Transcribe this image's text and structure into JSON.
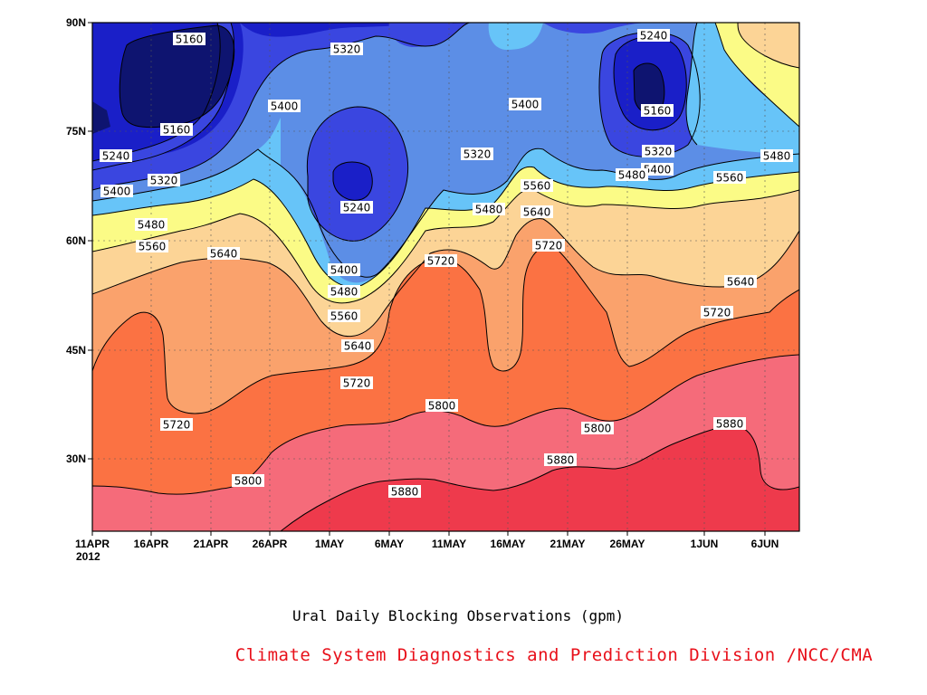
{
  "chart_data": {
    "type": "heatmap",
    "title": "Ural Daily Blocking Observations (gpm)",
    "credit": "Climate System Diagnostics and Prediction Division /NCC/CMA",
    "y_ticks": [
      "90N",
      "75N",
      "60N",
      "45N",
      "30N"
    ],
    "x_ticks": [
      "11APR",
      "16APR",
      "21APR",
      "26APR",
      "1MAY",
      "6MAY",
      "11MAY",
      "16MAY",
      "21MAY",
      "26MAY",
      "1JUN",
      "6JUN"
    ],
    "x_year": "2012",
    "x_range": [
      "2012-04-11",
      "2012-06-09"
    ],
    "y_range": [
      "20N",
      "90N"
    ],
    "grid": "dotted",
    "contour_levels": [
      5160,
      5240,
      5320,
      5400,
      5480,
      5560,
      5640,
      5720,
      5800,
      5880
    ],
    "colors": {
      "below_5160": "#0e1470",
      "5160_5240": "#1a1fc8",
      "5240_5320": "#3a46e0",
      "5320_5400": "#5c8ee6",
      "5400_5480": "#67c4f8",
      "5480_5560": "#fbfb86",
      "5560_5640": "#fcd496",
      "5640_5720": "#faa26c",
      "5720_5800": "#fb7243",
      "5800_5880": "#f56b7a",
      "above_5880": "#ee3a4c"
    },
    "contour_labels": [
      {
        "text": "5160",
        "value": 5160
      },
      {
        "text": "5160",
        "value": 5160
      },
      {
        "text": "5160",
        "value": 5160
      },
      {
        "text": "5240",
        "value": 5240
      },
      {
        "text": "5240",
        "value": 5240
      },
      {
        "text": "5240",
        "value": 5240
      },
      {
        "text": "5320",
        "value": 5320
      },
      {
        "text": "5320",
        "value": 5320
      },
      {
        "text": "5320",
        "value": 5320
      },
      {
        "text": "5320",
        "value": 5320
      },
      {
        "text": "5400",
        "value": 5400
      },
      {
        "text": "5400",
        "value": 5400
      },
      {
        "text": "5400",
        "value": 5400
      },
      {
        "text": "5400",
        "value": 5400
      },
      {
        "text": "5400",
        "value": 5400
      },
      {
        "text": "5480",
        "value": 5480
      },
      {
        "text": "5480",
        "value": 5480
      },
      {
        "text": "5480",
        "value": 5480
      },
      {
        "text": "5480",
        "value": 5480
      },
      {
        "text": "5480",
        "value": 5480
      },
      {
        "text": "5560",
        "value": 5560
      },
      {
        "text": "5560",
        "value": 5560
      },
      {
        "text": "5560",
        "value": 5560
      },
      {
        "text": "5560",
        "value": 5560
      },
      {
        "text": "5640",
        "value": 5640
      },
      {
        "text": "5640",
        "value": 5640
      },
      {
        "text": "5640",
        "value": 5640
      },
      {
        "text": "5640",
        "value": 5640
      },
      {
        "text": "5720",
        "value": 5720
      },
      {
        "text": "5720",
        "value": 5720
      },
      {
        "text": "5720",
        "value": 5720
      },
      {
        "text": "5720",
        "value": 5720
      },
      {
        "text": "5720",
        "value": 5720
      },
      {
        "text": "5800",
        "value": 5800
      },
      {
        "text": "5800",
        "value": 5800
      },
      {
        "text": "5800",
        "value": 5800
      },
      {
        "text": "5880",
        "value": 5880
      },
      {
        "text": "5880",
        "value": 5880
      },
      {
        "text": "5880",
        "value": 5880
      }
    ]
  }
}
